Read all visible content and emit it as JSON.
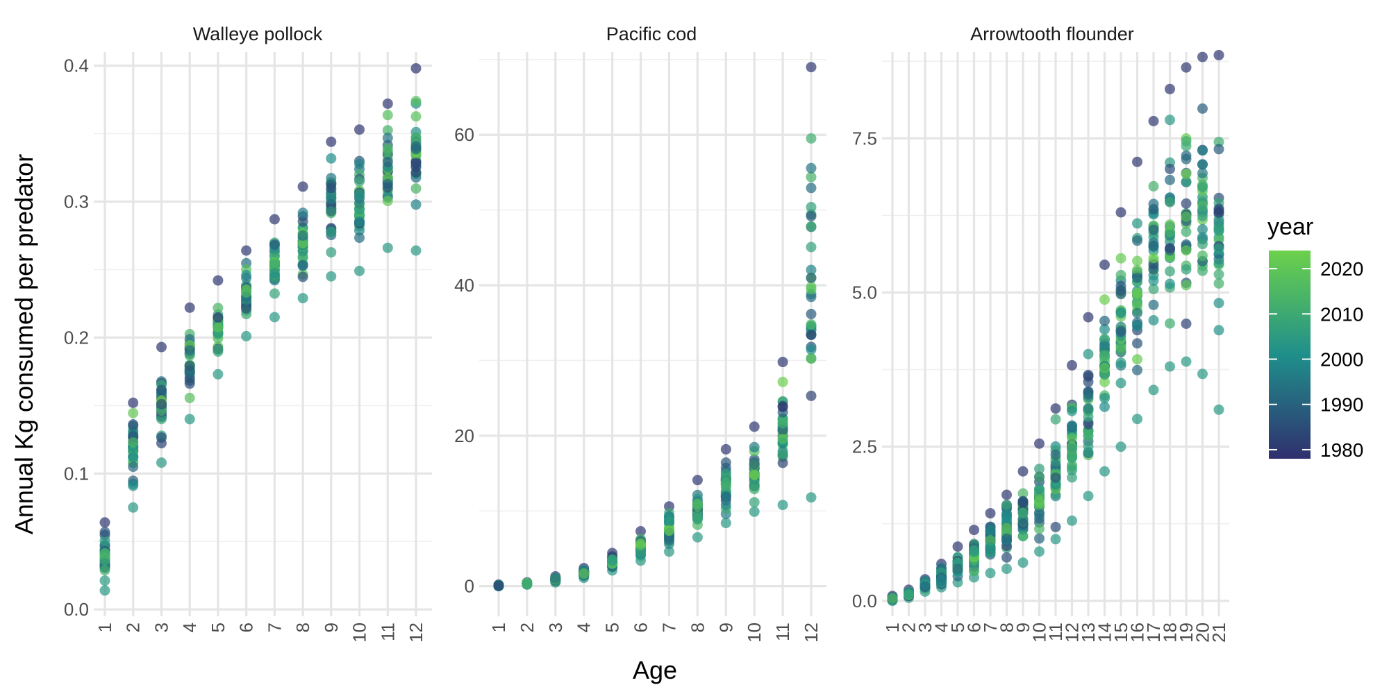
{
  "chart_data": {
    "type": "scatter",
    "xlabel": "Age",
    "ylabel": "Annual Kg consumed per predator",
    "colorbar": {
      "title": "year",
      "range": [
        1978,
        2024
      ],
      "ticks": [
        1980,
        1990,
        2000,
        2010,
        2020
      ],
      "colors": {
        "low": "#30306e",
        "mid": "#1f8f8b",
        "high": "#6cd14b"
      }
    },
    "point_alpha": 0.7,
    "facets": [
      {
        "title": "Walleye pollock",
        "xlim": [
          0.5,
          12.5
        ],
        "ylim": [
          -0.005,
          0.41
        ],
        "x_ticks": [
          "1",
          "2",
          "3",
          "4",
          "5",
          "6",
          "7",
          "8",
          "9",
          "10",
          "11",
          "12"
        ],
        "y_ticks": [
          0.0,
          0.1,
          0.2,
          0.3,
          0.4
        ],
        "y_tick_labels": [
          "0.0",
          "0.1",
          "0.2",
          "0.3",
          "0.4"
        ],
        "y_minor": [
          0.05,
          0.15,
          0.25,
          0.35
        ],
        "age_stats": [
          {
            "age": 1,
            "min": 0.014,
            "max": 0.064
          },
          {
            "age": 2,
            "min": 0.075,
            "max": 0.152
          },
          {
            "age": 3,
            "min": 0.108,
            "max": 0.193
          },
          {
            "age": 4,
            "min": 0.14,
            "max": 0.222
          },
          {
            "age": 5,
            "min": 0.173,
            "max": 0.242
          },
          {
            "age": 6,
            "min": 0.201,
            "max": 0.264
          },
          {
            "age": 7,
            "min": 0.215,
            "max": 0.287
          },
          {
            "age": 8,
            "min": 0.229,
            "max": 0.311
          },
          {
            "age": 9,
            "min": 0.245,
            "max": 0.344
          },
          {
            "age": 10,
            "min": 0.249,
            "max": 0.353
          },
          {
            "age": 11,
            "min": 0.266,
            "max": 0.372
          },
          {
            "age": 12,
            "min": 0.264,
            "max": 0.398
          }
        ]
      },
      {
        "title": "Pacific cod",
        "xlim": [
          0.5,
          12.5
        ],
        "ylim": [
          -4,
          71
        ],
        "x_ticks": [
          "1",
          "2",
          "3",
          "4",
          "5",
          "6",
          "7",
          "8",
          "9",
          "10",
          "11",
          "12"
        ],
        "y_ticks": [
          0,
          20,
          40,
          60
        ],
        "y_tick_labels": [
          "0",
          "20",
          "40",
          "60"
        ],
        "y_minor": [
          10,
          30,
          50,
          70
        ],
        "age_stats": [
          {
            "age": 1,
            "min": 0.0,
            "max": 0.2
          },
          {
            "age": 2,
            "min": 0.2,
            "max": 0.5
          },
          {
            "age": 3,
            "min": 0.5,
            "max": 1.3
          },
          {
            "age": 4,
            "min": 1.1,
            "max": 2.4
          },
          {
            "age": 5,
            "min": 2.1,
            "max": 4.4
          },
          {
            "age": 6,
            "min": 3.4,
            "max": 7.3
          },
          {
            "age": 7,
            "min": 4.6,
            "max": 10.6
          },
          {
            "age": 8,
            "min": 6.5,
            "max": 14.1
          },
          {
            "age": 9,
            "min": 8.4,
            "max": 18.2
          },
          {
            "age": 10,
            "min": 9.9,
            "max": 21.2
          },
          {
            "age": 11,
            "min": 10.8,
            "max": 29.8
          },
          {
            "age": 12,
            "min": 11.8,
            "max": 69.0
          }
        ],
        "extra_points": [
          {
            "age": 11,
            "value": 23.8,
            "year": 1980
          },
          {
            "age": 12,
            "value": 34.8,
            "year": 2015
          },
          {
            "age": 12,
            "value": 33.4,
            "year": 1981
          },
          {
            "age": 12,
            "value": 25.3,
            "year": 1982
          }
        ]
      },
      {
        "title": "Arrowtooth flounder",
        "xlim": [
          0.5,
          21.5
        ],
        "ylim": [
          -0.25,
          8.9
        ],
        "x_ticks": [
          "1",
          "2",
          "3",
          "4",
          "5",
          "6",
          "7",
          "8",
          "9",
          "10",
          "11",
          "12",
          "13",
          "14",
          "15",
          "16",
          "17",
          "18",
          "19",
          "20",
          "21"
        ],
        "y_ticks": [
          0.0,
          2.5,
          5.0,
          7.5
        ],
        "y_tick_labels": [
          "0.0",
          "2.5",
          "5.0",
          "7.5"
        ],
        "y_minor": [
          1.25,
          3.75,
          6.25,
          8.75
        ],
        "age_stats": [
          {
            "age": 1,
            "min": 0.0,
            "max": 0.08
          },
          {
            "age": 2,
            "min": 0.05,
            "max": 0.18
          },
          {
            "age": 3,
            "min": 0.15,
            "max": 0.35
          },
          {
            "age": 4,
            "min": 0.22,
            "max": 0.6
          },
          {
            "age": 5,
            "min": 0.3,
            "max": 0.88
          },
          {
            "age": 6,
            "min": 0.38,
            "max": 1.15
          },
          {
            "age": 7,
            "min": 0.45,
            "max": 1.42
          },
          {
            "age": 8,
            "min": 0.52,
            "max": 1.72
          },
          {
            "age": 9,
            "min": 0.62,
            "max": 2.1
          },
          {
            "age": 10,
            "min": 0.8,
            "max": 2.55
          },
          {
            "age": 11,
            "min": 1.0,
            "max": 3.12
          },
          {
            "age": 12,
            "min": 1.3,
            "max": 3.82
          },
          {
            "age": 13,
            "min": 1.7,
            "max": 4.6
          },
          {
            "age": 14,
            "min": 2.1,
            "max": 5.45
          },
          {
            "age": 15,
            "min": 2.5,
            "max": 6.3
          },
          {
            "age": 16,
            "min": 2.95,
            "max": 7.12
          },
          {
            "age": 17,
            "min": 3.42,
            "max": 7.78
          },
          {
            "age": 18,
            "min": 3.8,
            "max": 8.3
          },
          {
            "age": 19,
            "min": 3.88,
            "max": 8.65
          },
          {
            "age": 20,
            "min": 3.68,
            "max": 8.82
          },
          {
            "age": 21,
            "min": 3.1,
            "max": 8.85
          }
        ]
      }
    ]
  }
}
